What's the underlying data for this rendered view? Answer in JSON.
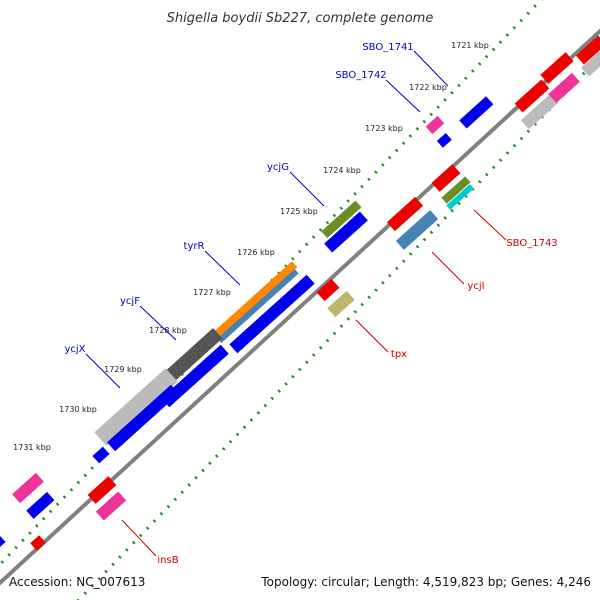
{
  "title": "Shigella boydii Sb227, complete genome",
  "footer": {
    "accession": "Accession: NC_007613",
    "topology": "Topology: circular; Length: 4,519,823 bp; Genes: 4,246"
  },
  "ticks": [
    "1721 kbp",
    "1722 kbp",
    "1723 kbp",
    "1724 kbp",
    "1725 kbp",
    "1726 kbp",
    "1727 kbp",
    "1728 kbp",
    "1729 kbp",
    "1730 kbp",
    "1731 kbp"
  ],
  "genes_top": [
    "SBO_1741",
    "SBO_1742",
    "ycjG",
    "tyrR",
    "ycjF",
    "ycjX"
  ],
  "genes_bottom": [
    "SBO_1743",
    "ycjI",
    "tpx",
    "insB"
  ],
  "colors": {
    "forward_label": "#0000cc",
    "reverse_label": "#cc0000",
    "backbone": "#808080",
    "tick_dots": "#1a8c1a",
    "cds_blue": "#0000ee",
    "cds_red": "#ee0000",
    "pink": "#ee3399",
    "gray": "#bbbbbb",
    "dark_gray": "#555555",
    "orange": "#ff8800",
    "steel": "#4682b4",
    "olive": "#6b8e23",
    "cyan": "#00cccc",
    "khaki": "#bdb76b"
  }
}
